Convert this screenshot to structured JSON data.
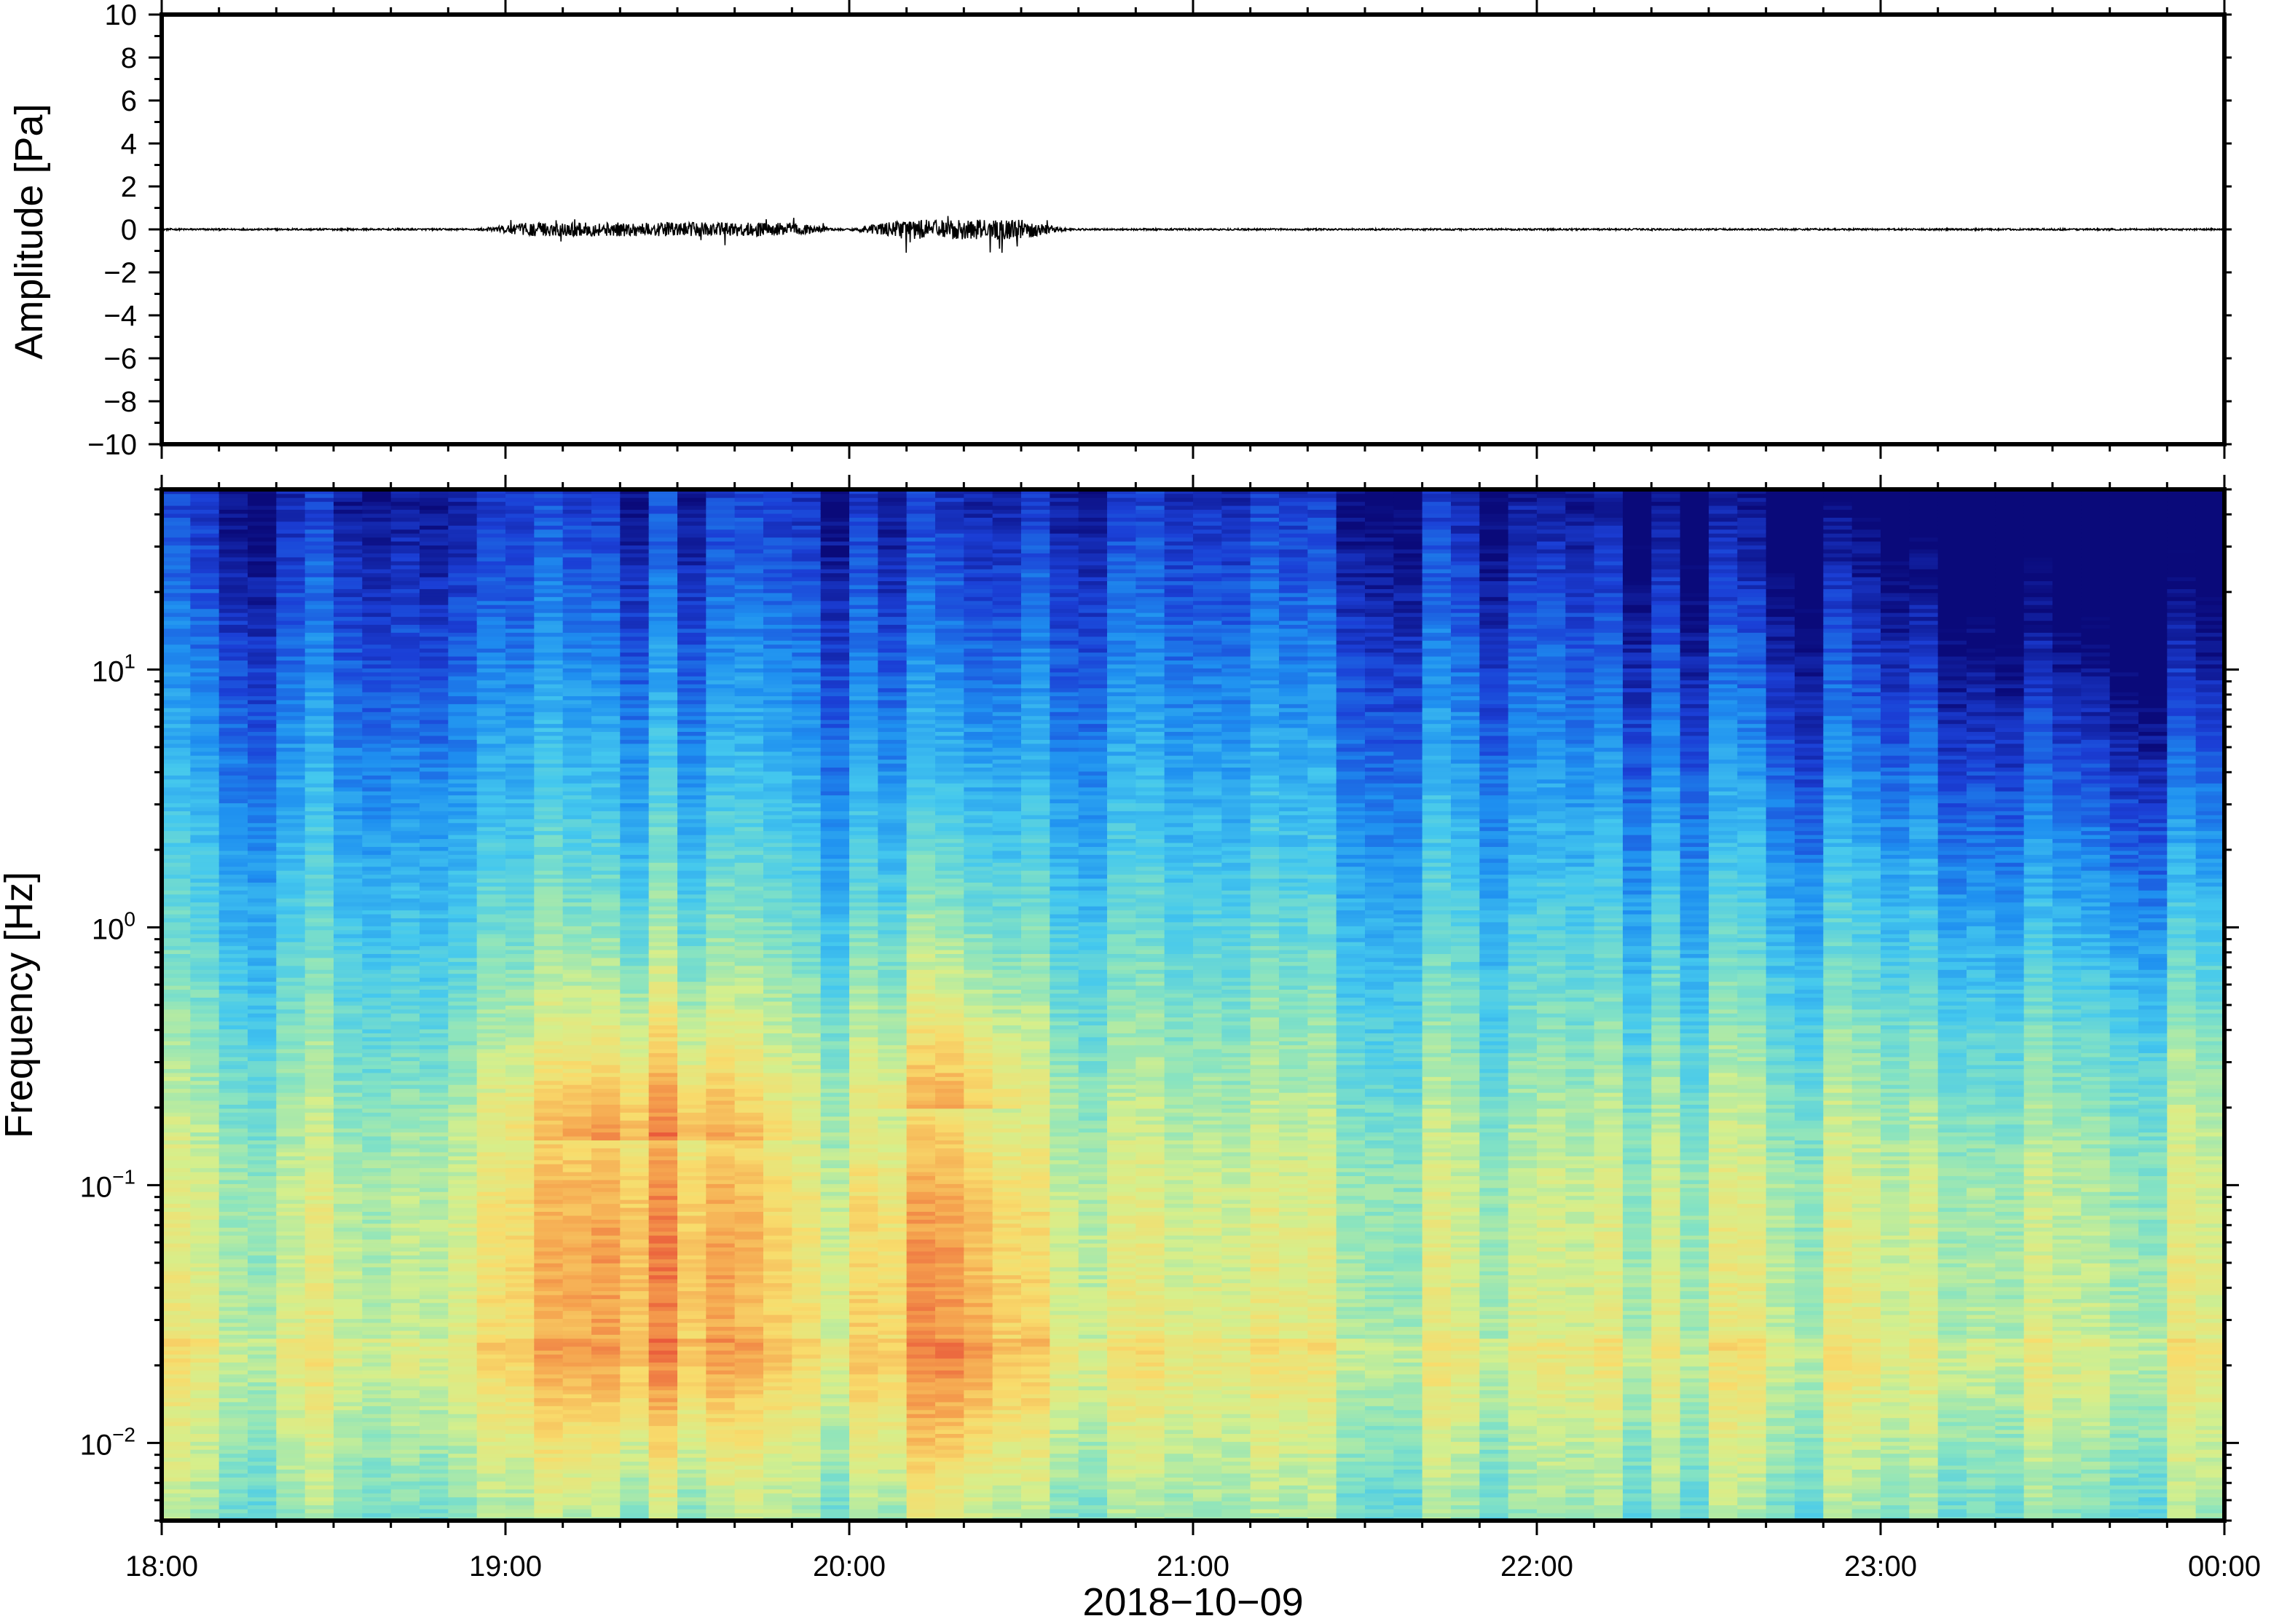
{
  "chart_data": [
    {
      "type": "line",
      "ylabel": "Amplitude [Pa]",
      "ylim": [
        -10,
        10
      ],
      "yticks": [
        10,
        8,
        6,
        4,
        2,
        0,
        -2,
        -4,
        -6,
        -8,
        -10
      ],
      "ytick_labels": [
        "10",
        "8",
        "6",
        "4",
        "2",
        "0",
        "−2",
        "−4",
        "−6",
        "−8",
        "−10"
      ],
      "xlim": [
        "18:00",
        "00:00"
      ],
      "grid": false,
      "series": [
        {
          "values": "waveform near zero; bursts of about ±1 Pa between 19:05–19:50 and 20:10–20:30",
          "bursts": [
            {
              "start": "19:05",
              "end": "19:50",
              "peak_pa": 0.8
            },
            {
              "start": "20:10",
              "end": "20:30",
              "peak_pa": 1.2
            }
          ],
          "color": "#000000"
        }
      ]
    },
    {
      "type": "heatmap",
      "ylabel": "Frequency [Hz]",
      "yscale": "log",
      "ylim": [
        0.005,
        50
      ],
      "yticks": [
        10,
        1,
        0.1,
        0.01
      ],
      "ytick_labels": [
        {
          "base": "10",
          "exp": "1"
        },
        {
          "base": "10",
          "exp": "0"
        },
        {
          "base": "10",
          "exp": "−1"
        },
        {
          "base": "10",
          "exp": "−2"
        }
      ],
      "xlabel": "2018−10−09",
      "xlim": [
        "18:00",
        "00:00"
      ],
      "xtick_labels": [
        "18:00",
        "19:00",
        "20:00",
        "21:00",
        "22:00",
        "23:00",
        "00:00"
      ],
      "colormap": [
        "#0a0a7a",
        "#1b3fd6",
        "#1e8ff0",
        "#44c8ee",
        "#86e3c2",
        "#d5ef8c",
        "#f8dc6c",
        "#f5a24e",
        "#e9573a"
      ],
      "energy_peaks": [
        {
          "start": "19:00",
          "end": "19:50",
          "f_low_hz": 0.02,
          "f_high_hz": 0.15
        },
        {
          "start": "20:05",
          "end": "20:30",
          "f_low_hz": 0.008,
          "f_high_hz": 0.2
        }
      ],
      "grid": false
    }
  ]
}
